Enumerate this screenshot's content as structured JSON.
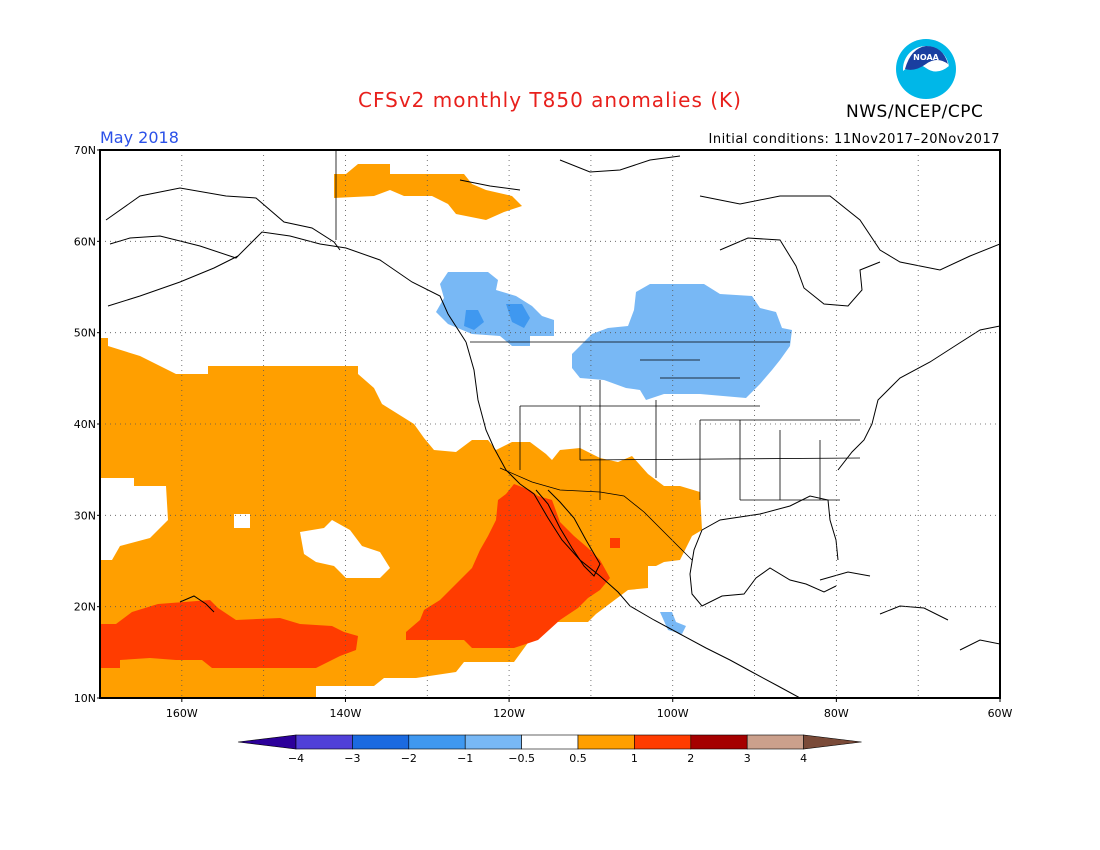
{
  "header": {
    "title": "CFSv2 monthly T850 anomalies (K)",
    "org": "NWS/NCEP/CPC",
    "period": "May 2018",
    "initial_conditions": "Initial conditions: 11Nov2017–20Nov2017",
    "logo_text": "NOAA"
  },
  "map": {
    "lon_range": [
      -170,
      -60
    ],
    "lat_range": [
      10,
      70
    ],
    "lat_labels": [
      "70N",
      "60N",
      "50N",
      "40N",
      "30N",
      "20N",
      "10N"
    ],
    "lon_labels": [
      "160W",
      "140W",
      "120W",
      "100W",
      "80W",
      "60W"
    ],
    "grid": true
  },
  "colorbar": {
    "labels": [
      "−4",
      "−3",
      "−2",
      "−1",
      "−0.5",
      "0.5",
      "1",
      "2",
      "3",
      "4"
    ],
    "colors": [
      "#2c009a",
      "#5040d8",
      "#1b6ae0",
      "#3f98f0",
      "#78b8f5",
      "#ffffff",
      "#ff9f00",
      "#ff3c00",
      "#a50000",
      "#cba08c",
      "#7a4a38"
    ]
  },
  "colors": {
    "title": "#e8201c",
    "period": "#2a50e8",
    "orange": "#ff9f00",
    "red": "#ff3c00",
    "lightblue": "#78b8f5",
    "blue": "#3f98f0"
  }
}
